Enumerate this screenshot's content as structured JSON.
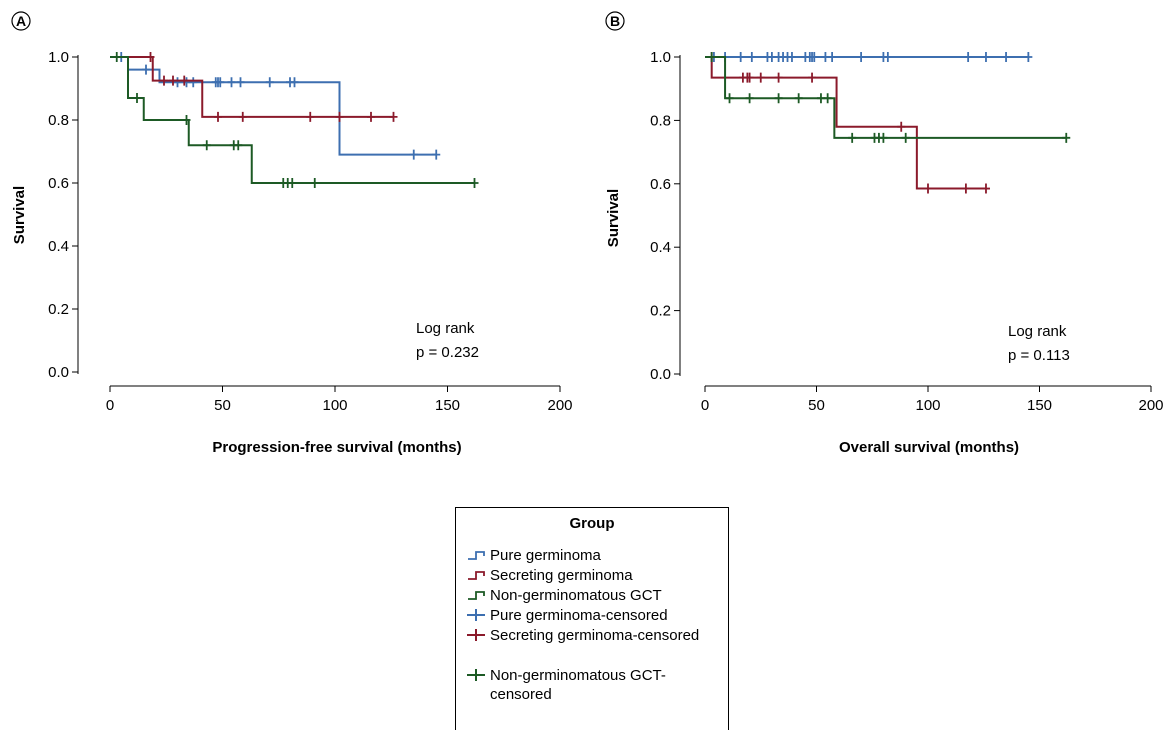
{
  "figure": {
    "colors": {
      "pure": "#3d6fb0",
      "secreting": "#8b1a2b",
      "nongerm": "#1d5a25"
    }
  },
  "chart_data": [
    {
      "panel": "A",
      "type": "line",
      "title": "",
      "xlabel": "Progression-free survival (months)",
      "ylabel": "Survival",
      "xlim": [
        0,
        200
      ],
      "ylim": [
        0.0,
        1.0
      ],
      "xticks": [
        "0",
        "50",
        "100",
        "150",
        "200"
      ],
      "yticks": [
        "0.0",
        "0.2",
        "0.4",
        "0.6",
        "0.8",
        "1.0"
      ],
      "annotation": [
        "Log rank",
        "p = 0.232"
      ],
      "grid": false,
      "series": [
        {
          "name": "Pure germinoma",
          "color_key": "pure",
          "steps": [
            [
              0,
              1.0
            ],
            [
              8,
              0.96
            ],
            [
              22,
              0.92
            ],
            [
              102,
              0.69
            ],
            [
              145,
              0.69
            ]
          ],
          "censored": [
            [
              5,
              1.0
            ],
            [
              16,
              0.96
            ],
            [
              30,
              0.92
            ],
            [
              34,
              0.92
            ],
            [
              37,
              0.92
            ],
            [
              47,
              0.92
            ],
            [
              48,
              0.92
            ],
            [
              49,
              0.92
            ],
            [
              54,
              0.92
            ],
            [
              58,
              0.92
            ],
            [
              71,
              0.92
            ],
            [
              80,
              0.92
            ],
            [
              82,
              0.92
            ],
            [
              135,
              0.69
            ],
            [
              145,
              0.69
            ]
          ]
        },
        {
          "name": "Secreting germinoma",
          "color_key": "secreting",
          "steps": [
            [
              0,
              1.0
            ],
            [
              19,
              0.925
            ],
            [
              41,
              0.81
            ],
            [
              126,
              0.81
            ]
          ],
          "censored": [
            [
              18,
              1.0
            ],
            [
              24,
              0.925
            ],
            [
              28,
              0.925
            ],
            [
              33,
              0.925
            ],
            [
              48,
              0.81
            ],
            [
              59,
              0.81
            ],
            [
              89,
              0.81
            ],
            [
              102,
              0.81
            ],
            [
              116,
              0.81
            ],
            [
              126,
              0.81
            ]
          ]
        },
        {
          "name": "Non-germinomatous GCT",
          "color_key": "nongerm",
          "steps": [
            [
              0,
              1.0
            ],
            [
              8,
              0.87
            ],
            [
              15,
              0.8
            ],
            [
              35,
              0.72
            ],
            [
              63,
              0.6
            ],
            [
              162,
              0.6
            ]
          ],
          "censored": [
            [
              3,
              1.0
            ],
            [
              12,
              0.87
            ],
            [
              34,
              0.8
            ],
            [
              43,
              0.72
            ],
            [
              55,
              0.72
            ],
            [
              57,
              0.72
            ],
            [
              77,
              0.6
            ],
            [
              79,
              0.6
            ],
            [
              81,
              0.6
            ],
            [
              91,
              0.6
            ],
            [
              162,
              0.6
            ]
          ]
        }
      ]
    },
    {
      "panel": "B",
      "type": "line",
      "title": "",
      "xlabel": "Overall survival (months)",
      "ylabel": "Survival",
      "xlim": [
        0,
        200
      ],
      "ylim": [
        0.0,
        1.0
      ],
      "xticks": [
        "0",
        "50",
        "100",
        "150",
        "200"
      ],
      "yticks": [
        "0.0",
        "0.2",
        "0.4",
        "0.6",
        "0.8",
        "1.0"
      ],
      "annotation": [
        "Log rank",
        "p = 0.113"
      ],
      "grid": false,
      "series": [
        {
          "name": "Pure germinoma",
          "color_key": "pure",
          "steps": [
            [
              0,
              1.0
            ],
            [
              145,
              1.0
            ]
          ],
          "censored": [
            [
              4,
              1.0
            ],
            [
              9,
              1.0
            ],
            [
              16,
              1.0
            ],
            [
              21,
              1.0
            ],
            [
              28,
              1.0
            ],
            [
              30,
              1.0
            ],
            [
              33,
              1.0
            ],
            [
              35,
              1.0
            ],
            [
              37,
              1.0
            ],
            [
              39,
              1.0
            ],
            [
              45,
              1.0
            ],
            [
              47,
              1.0
            ],
            [
              48,
              1.0
            ],
            [
              49,
              1.0
            ],
            [
              54,
              1.0
            ],
            [
              57,
              1.0
            ],
            [
              70,
              1.0
            ],
            [
              80,
              1.0
            ],
            [
              82,
              1.0
            ],
            [
              118,
              1.0
            ],
            [
              126,
              1.0
            ],
            [
              135,
              1.0
            ],
            [
              145,
              1.0
            ]
          ]
        },
        {
          "name": "Secreting germinoma",
          "color_key": "secreting",
          "steps": [
            [
              0,
              1.0
            ],
            [
              3,
              0.935
            ],
            [
              59,
              0.78
            ],
            [
              95,
              0.585
            ],
            [
              126,
              0.585
            ]
          ],
          "censored": [
            [
              3,
              1.0
            ],
            [
              17,
              0.935
            ],
            [
              19,
              0.935
            ],
            [
              20,
              0.935
            ],
            [
              25,
              0.935
            ],
            [
              33,
              0.935
            ],
            [
              48,
              0.935
            ],
            [
              88,
              0.78
            ],
            [
              100,
              0.585
            ],
            [
              117,
              0.585
            ],
            [
              126,
              0.585
            ]
          ]
        },
        {
          "name": "Non-germinomatous GCT",
          "color_key": "nongerm",
          "steps": [
            [
              0,
              1.0
            ],
            [
              9,
              0.87
            ],
            [
              58,
              0.745
            ],
            [
              162,
              0.745
            ]
          ],
          "censored": [
            [
              3,
              1.0
            ],
            [
              11,
              0.87
            ],
            [
              20,
              0.87
            ],
            [
              33,
              0.87
            ],
            [
              42,
              0.87
            ],
            [
              52,
              0.87
            ],
            [
              55,
              0.87
            ],
            [
              66,
              0.745
            ],
            [
              76,
              0.745
            ],
            [
              78,
              0.745
            ],
            [
              80,
              0.745
            ],
            [
              90,
              0.745
            ],
            [
              162,
              0.745
            ]
          ]
        }
      ]
    }
  ],
  "legend": {
    "title": "Group",
    "items": [
      {
        "label": "Pure germinoma",
        "kind": "step",
        "color_key": "pure"
      },
      {
        "label": "Secreting germinoma",
        "kind": "step",
        "color_key": "secreting"
      },
      {
        "label": "Non-germinomatous GCT",
        "kind": "step",
        "color_key": "nongerm"
      },
      {
        "label": "Pure germinoma-censored",
        "kind": "cross",
        "color_key": "pure"
      },
      {
        "label": "Secreting germinoma-censored",
        "kind": "cross",
        "color_key": "secreting"
      },
      {
        "label": "Non-germinomatous GCT-censored",
        "kind": "cross",
        "color_key": "nongerm"
      }
    ]
  }
}
